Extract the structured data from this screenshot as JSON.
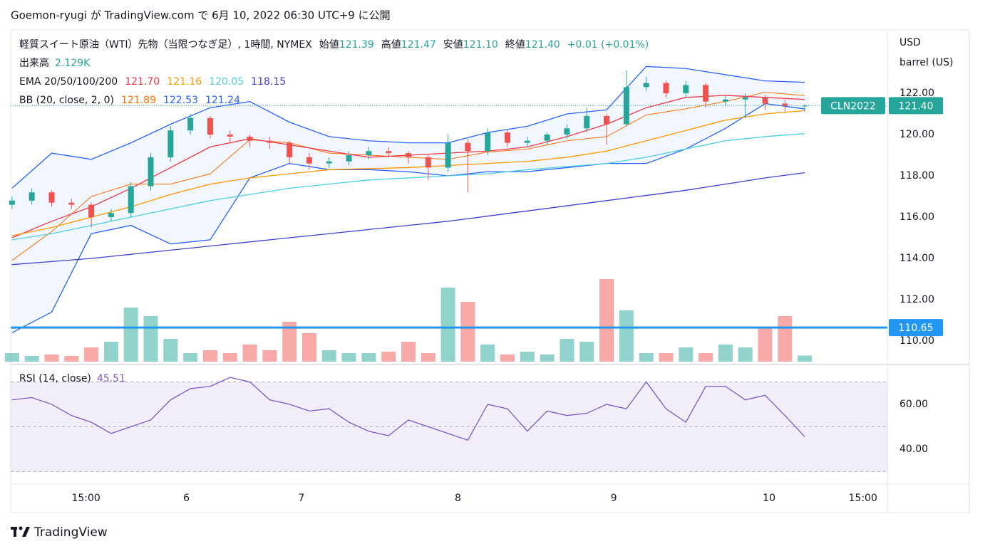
{
  "header": {
    "text": "Goemon-ryugi が TradingView.com で 6月 10, 2022 06:30 UTC+9 に公開"
  },
  "footer": {
    "brand": "TradingView"
  },
  "chart_data": {
    "type": "candlestick",
    "title": "軽質スイート原油（WTI）先物（当限つなぎ足）, 1時間, NYMEX",
    "ohlc_labels": [
      "始値",
      "高値",
      "安値",
      "終値"
    ],
    "ohlc_value_labels": [
      "121.39",
      "121.47",
      "121.10",
      "121.40"
    ],
    "change": "+0.01 (+0.01%)",
    "symbol": "CLN2022",
    "price_label": "121.40",
    "y_axis_label": [
      "USD",
      "barrel (US)"
    ],
    "up_color": "#26a69a",
    "down_color": "#ef5350",
    "x": [
      0,
      3,
      6,
      9,
      12,
      15,
      18,
      21,
      24,
      27,
      30,
      33,
      36,
      39,
      42,
      45,
      48,
      51,
      54,
      57,
      60,
      63,
      66,
      69,
      72,
      75,
      78,
      81,
      84,
      87,
      90,
      93,
      96,
      99,
      102,
      105,
      108,
      111,
      114,
      117,
      120
    ],
    "open": [
      116.6,
      116.8,
      117.2,
      116.7,
      116.6,
      116.0,
      116.2,
      117.5,
      118.9,
      120.2,
      120.8,
      120.0,
      119.9,
      119.7,
      119.6,
      118.9,
      118.6,
      118.7,
      119.0,
      119.2,
      119.1,
      118.9,
      118.4,
      119.6,
      119.2,
      120.1,
      119.6,
      119.7,
      120.0,
      120.3,
      120.9,
      120.5,
      122.3,
      122.5,
      122.0,
      122.4,
      121.6,
      121.7,
      121.8,
      121.5,
      121.39
    ],
    "high": [
      117.0,
      117.4,
      117.3,
      116.9,
      116.7,
      116.4,
      117.7,
      119.1,
      120.4,
      121.0,
      120.9,
      120.2,
      120.0,
      119.9,
      119.7,
      119.1,
      118.9,
      119.2,
      119.4,
      119.4,
      119.2,
      119.0,
      120.0,
      119.8,
      120.3,
      120.2,
      119.9,
      120.1,
      120.5,
      121.3,
      121.0,
      123.1,
      122.8,
      122.6,
      122.6,
      122.5,
      121.9,
      122.0,
      121.9,
      121.7,
      121.47
    ],
    "low": [
      116.4,
      116.6,
      116.5,
      116.4,
      115.5,
      115.8,
      116.0,
      117.3,
      118.7,
      120.0,
      119.8,
      119.6,
      119.4,
      119.3,
      118.6,
      118.3,
      118.4,
      118.5,
      118.8,
      118.9,
      118.6,
      117.8,
      118.2,
      117.2,
      119.0,
      119.4,
      119.4,
      119.5,
      119.8,
      120.1,
      119.5,
      120.4,
      122.1,
      121.8,
      121.8,
      121.3,
      121.4,
      120.8,
      121.2,
      121.1,
      121.1
    ],
    "close": [
      116.8,
      117.2,
      116.7,
      116.6,
      116.0,
      116.2,
      117.5,
      118.9,
      120.2,
      120.8,
      120.0,
      119.9,
      119.7,
      119.6,
      118.9,
      118.6,
      118.7,
      119.0,
      119.2,
      119.1,
      118.9,
      118.4,
      119.6,
      119.2,
      120.1,
      119.6,
      119.7,
      120.0,
      120.3,
      120.9,
      120.5,
      122.3,
      122.5,
      122.0,
      122.4,
      121.6,
      121.7,
      121.8,
      121.5,
      121.39,
      121.4
    ],
    "xlim": [
      -0.2,
      132.5
    ],
    "xticks": [
      {
        "value": 11.2,
        "label": "15:00"
      },
      {
        "value": 26.4,
        "label": "6"
      },
      {
        "value": 43.8,
        "label": "7"
      },
      {
        "value": 67.5,
        "label": "8"
      },
      {
        "value": 91.1,
        "label": "9"
      },
      {
        "value": 114.6,
        "label": "10"
      },
      {
        "value": 128.8,
        "label": "15:00"
      }
    ],
    "ylim": [
      109,
      125.07
    ],
    "yticks": [
      {
        "value": 110,
        "label": "110.00"
      },
      {
        "value": 112,
        "label": "112.00"
      },
      {
        "value": 114,
        "label": "114.00"
      },
      {
        "value": 116,
        "label": "116.00"
      },
      {
        "value": 118,
        "label": "118.00"
      },
      {
        "value": 120,
        "label": "120.00"
      },
      {
        "value": 122,
        "label": "122.00"
      }
    ],
    "volume": {
      "name": "出来高",
      "last_label": "2.129K",
      "vlim": [
        0,
        30
      ],
      "values": [
        3,
        2,
        2.5,
        2,
        5,
        7,
        19,
        16,
        8,
        3,
        4,
        3,
        6,
        4,
        14,
        10,
        4,
        3,
        3,
        3.5,
        7,
        3,
        26,
        21,
        6,
        2.5,
        3.5,
        2.5,
        8,
        7,
        29,
        18,
        3,
        3,
        5,
        3,
        6,
        5,
        12,
        16,
        2.129
      ]
    },
    "line_x": [
      0,
      6,
      12,
      18,
      24,
      30,
      36,
      42,
      48,
      54,
      60,
      66,
      72,
      78,
      84,
      90,
      96,
      102,
      108,
      114,
      120
    ],
    "ema": {
      "name": "EMA 20/50/100/200",
      "value_labels": [
        "121.70",
        "121.16",
        "120.05",
        "118.15"
      ],
      "series": [
        {
          "color": "#f23645",
          "values": [
            115.0,
            115.8,
            116.5,
            117.4,
            118.4,
            119.4,
            119.8,
            119.5,
            119.2,
            118.9,
            119.0,
            119.1,
            119.2,
            119.4,
            119.9,
            120.5,
            121.3,
            121.8,
            121.9,
            121.8,
            121.7
          ]
        },
        {
          "color": "#ff9800",
          "values": [
            115.1,
            115.5,
            116.0,
            116.5,
            117.1,
            117.6,
            117.9,
            118.1,
            118.3,
            118.35,
            118.4,
            118.5,
            118.6,
            118.7,
            118.9,
            119.2,
            119.7,
            120.2,
            120.7,
            121.0,
            121.16
          ]
        },
        {
          "color": "#4dd0e1",
          "values": [
            114.9,
            115.2,
            115.6,
            116.0,
            116.4,
            116.8,
            117.1,
            117.4,
            117.6,
            117.8,
            117.9,
            118.0,
            118.1,
            118.3,
            118.45,
            118.6,
            118.9,
            119.3,
            119.7,
            119.9,
            120.05
          ]
        },
        {
          "color": "#3f3fd0",
          "values": [
            113.7,
            113.85,
            114.0,
            114.2,
            114.4,
            114.6,
            114.8,
            115.0,
            115.2,
            115.4,
            115.6,
            115.8,
            116.05,
            116.3,
            116.55,
            116.8,
            117.05,
            117.3,
            117.6,
            117.9,
            118.15
          ]
        }
      ]
    },
    "bb": {
      "name": "BB (20, close, 2, 0)",
      "value_labels": [
        "121.89",
        "122.53",
        "121.24"
      ],
      "fill": "#2962ff",
      "middle": {
        "color": "#ff6d00",
        "values": [
          113.9,
          115.3,
          117.0,
          117.6,
          117.6,
          118.1,
          119.75,
          119.6,
          119.1,
          119.0,
          118.9,
          118.8,
          119.15,
          119.3,
          119.7,
          119.9,
          120.95,
          121.25,
          121.6,
          122.05,
          121.89
        ]
      },
      "upper": {
        "color": "#2962ff",
        "values": [
          117.4,
          119.1,
          118.8,
          119.6,
          120.5,
          121.3,
          121.6,
          120.6,
          119.9,
          119.7,
          119.6,
          119.6,
          120.1,
          120.4,
          121.0,
          121.2,
          123.3,
          123.2,
          122.9,
          122.6,
          122.53
        ]
      },
      "lower": {
        "color": "#2962ff",
        "values": [
          110.4,
          111.4,
          115.2,
          115.6,
          114.7,
          114.9,
          117.9,
          118.6,
          118.3,
          118.3,
          118.2,
          118.0,
          118.2,
          118.2,
          118.4,
          118.6,
          118.6,
          119.3,
          120.3,
          121.5,
          121.24
        ]
      }
    },
    "hline": {
      "value": 110.65,
      "label": "110.65",
      "color": "#2196f3"
    },
    "rsi": {
      "name": "RSI (14, close)",
      "value_label": "45.51",
      "color": "#7e57c2",
      "ylim": [
        24.4,
        76.5
      ],
      "yticks": [
        {
          "value": 40,
          "label": "40.00"
        },
        {
          "value": 60,
          "label": "60.00"
        }
      ],
      "levels": [
        30,
        50,
        70
      ],
      "values": [
        62,
        63,
        60,
        55,
        52,
        47,
        50,
        53,
        62,
        67,
        68,
        72,
        70,
        62,
        60,
        57,
        58,
        52,
        48,
        46,
        53,
        50,
        47,
        44,
        60,
        58,
        48,
        57,
        55,
        56,
        60,
        58,
        70,
        58,
        52,
        68,
        68,
        62,
        64,
        55,
        45.51
      ]
    }
  }
}
